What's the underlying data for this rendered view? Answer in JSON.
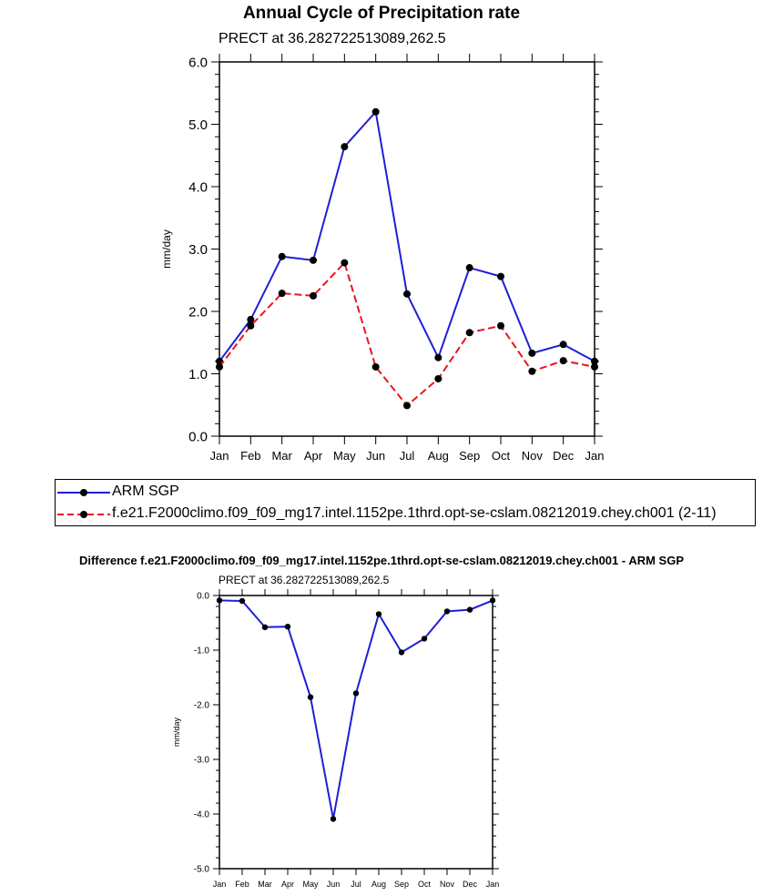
{
  "chart_data": [
    {
      "type": "line",
      "title": "Annual Cycle of Precipitation rate",
      "subtitle": "PRECT at 36.282722513089,262.5",
      "xlabel": "",
      "ylabel": "mm/day",
      "categories": [
        "Jan",
        "Feb",
        "Mar",
        "Apr",
        "May",
        "Jun",
        "Jul",
        "Aug",
        "Sep",
        "Oct",
        "Nov",
        "Dec",
        "Jan"
      ],
      "ylim": [
        0,
        6
      ],
      "yticks": [
        "0.0",
        "1.0",
        "2.0",
        "3.0",
        "4.0",
        "5.0",
        "6.0"
      ],
      "series": [
        {
          "name": "ARM SGP",
          "color": "#1f1fd6",
          "dash": "solid",
          "values": [
            1.2,
            1.87,
            2.88,
            2.82,
            4.64,
            5.2,
            2.28,
            1.26,
            2.7,
            2.56,
            1.33,
            1.47,
            1.2
          ]
        },
        {
          "name": "f.e21.F2000climo.f09_f09_mg17.intel.1152pe.1thrd.opt-se-cslam.08212019.chey.ch001 (2-11)",
          "color": "#e8161b",
          "dash": "dashed",
          "values": [
            1.11,
            1.77,
            2.29,
            2.25,
            2.78,
            1.11,
            0.49,
            0.92,
            1.66,
            1.77,
            1.04,
            1.21,
            1.11
          ]
        }
      ],
      "legend": "below"
    },
    {
      "type": "line",
      "title": "Difference f.e21.F2000climo.f09_f09_mg17.intel.1152pe.1thrd.opt-se-cslam.08212019.chey.ch001 - ARM SGP",
      "subtitle": "PRECT at 36.282722513089,262.5",
      "xlabel": "",
      "ylabel": "mm/day",
      "categories": [
        "Jan",
        "Feb",
        "Mar",
        "Apr",
        "May",
        "Jun",
        "Jul",
        "Aug",
        "Sep",
        "Oct",
        "Nov",
        "Dec",
        "Jan"
      ],
      "ylim": [
        -5,
        0
      ],
      "yticks": [
        "0.0",
        "-1.0",
        "-2.0",
        "-3.0",
        "-4.0",
        "-5.0"
      ],
      "series": [
        {
          "name": "Difference",
          "color": "#1f1fd6",
          "dash": "solid",
          "values": [
            -0.09,
            -0.1,
            -0.58,
            -0.57,
            -1.86,
            -4.09,
            -1.79,
            -0.34,
            -1.04,
            -0.79,
            -0.29,
            -0.26,
            -0.09
          ]
        }
      ]
    }
  ]
}
